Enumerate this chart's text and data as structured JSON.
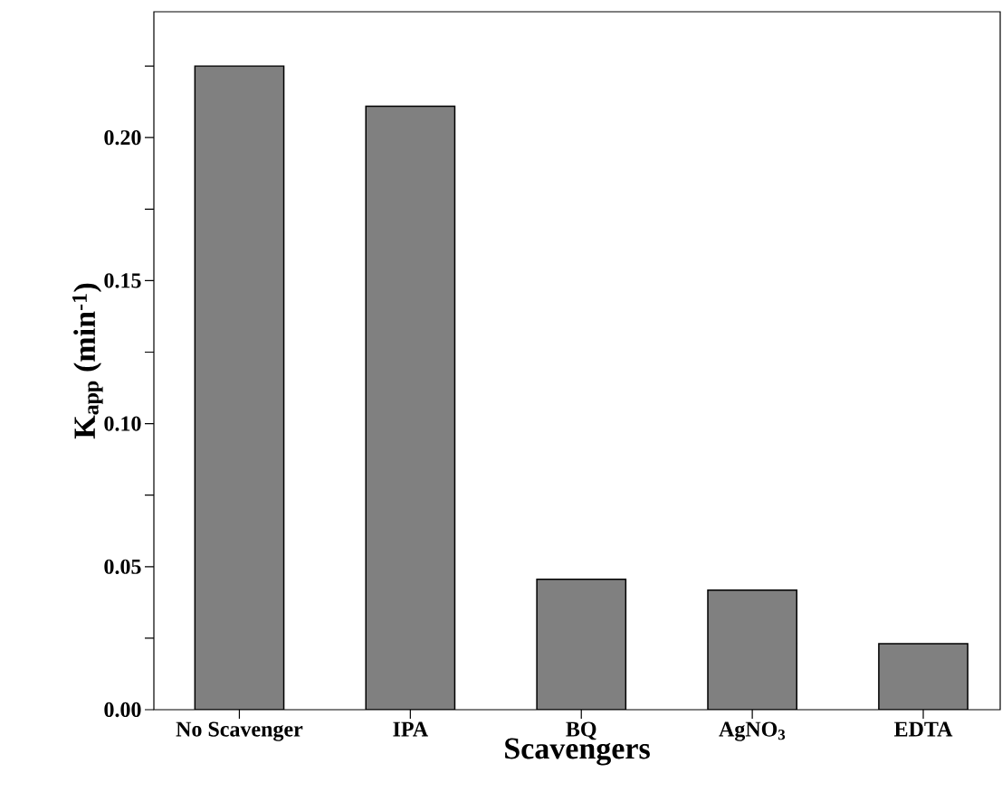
{
  "chart_data": {
    "type": "bar",
    "xlabel": "Scavengers",
    "ylabel": "K$_{app}$ (min$^{-1}$)",
    "categories": [
      "No Scavenger",
      "IPA",
      "BQ",
      "AgNO$_{3}$",
      "EDTA"
    ],
    "values": [
      0.225,
      0.211,
      0.0456,
      0.0418,
      0.0231
    ],
    "color": "#808080",
    "ylim": [
      0,
      0.244
    ],
    "yticks": [
      {
        "value": 0,
        "label": "0.00"
      },
      {
        "value": 0.025,
        "label": null
      },
      {
        "value": 0.05,
        "label": "0.05"
      },
      {
        "value": 0.075,
        "label": null
      },
      {
        "value": 0.1,
        "label": "0.10"
      },
      {
        "value": 0.125,
        "label": null
      },
      {
        "value": 0.15,
        "label": "0.15"
      },
      {
        "value": 0.175,
        "label": null
      },
      {
        "value": 0.2,
        "label": "0.20"
      },
      {
        "value": 0.225,
        "label": null
      }
    ]
  }
}
